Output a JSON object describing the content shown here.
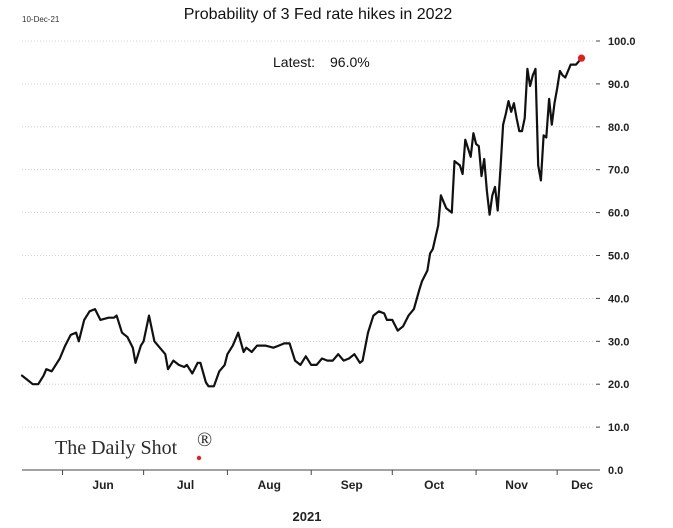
{
  "header": {
    "date_stamp": "10-Dec-21",
    "title": "Probability of 3 Fed rate hikes in 2022"
  },
  "annotation": {
    "latest_label": "Latest:",
    "latest_value": "96.0%"
  },
  "brand": {
    "name": "The Daily Shot",
    "mark": "®",
    "dot_color": "#e02020"
  },
  "colors": {
    "line": "#111111",
    "latest_marker": "#e02020",
    "grid": "#c4c4c4"
  },
  "chart_data": {
    "type": "line",
    "title": "Probability of 3 Fed rate hikes in 2022",
    "xlabel": "2021",
    "ylabel": "",
    "ylim": [
      0,
      100
    ],
    "y_ticks": [
      "0.0",
      "10.0",
      "20.0",
      "30.0",
      "40.0",
      "50.0",
      "60.0",
      "70.0",
      "80.0",
      "90.0",
      "100.0"
    ],
    "y_axis_side": "right",
    "grid": true,
    "x_ticks": [
      {
        "label": "Jun",
        "date": "2021-06-01"
      },
      {
        "label": "Jul",
        "date": "2021-07-01"
      },
      {
        "label": "Aug",
        "date": "2021-08-01"
      },
      {
        "label": "Sep",
        "date": "2021-09-01"
      },
      {
        "label": "Oct",
        "date": "2021-10-01"
      },
      {
        "label": "Nov",
        "date": "2021-11-01"
      },
      {
        "label": "Dec",
        "date": "2021-12-01"
      }
    ],
    "x_range": [
      "2021-05-17",
      "2021-12-15"
    ],
    "latest": {
      "date": "2021-12-10",
      "value": 96.0
    },
    "series": [
      {
        "points": [
          [
            "2021-05-17",
            22.0
          ],
          [
            "2021-05-19",
            21.0
          ],
          [
            "2021-05-21",
            20.0
          ],
          [
            "2021-05-23",
            20.0
          ],
          [
            "2021-05-25",
            22.0
          ],
          [
            "2021-05-26",
            23.5
          ],
          [
            "2021-05-28",
            23.0
          ],
          [
            "2021-05-31",
            26.0
          ],
          [
            "2021-06-02",
            29.0
          ],
          [
            "2021-06-04",
            31.5
          ],
          [
            "2021-06-06",
            32.0
          ],
          [
            "2021-06-07",
            30.0
          ],
          [
            "2021-06-09",
            35.0
          ],
          [
            "2021-06-11",
            37.0
          ],
          [
            "2021-06-13",
            37.5
          ],
          [
            "2021-06-15",
            35.0
          ],
          [
            "2021-06-18",
            35.5
          ],
          [
            "2021-06-20",
            35.5
          ],
          [
            "2021-06-21",
            36.0
          ],
          [
            "2021-06-23",
            32.0
          ],
          [
            "2021-06-25",
            31.0
          ],
          [
            "2021-06-27",
            28.5
          ],
          [
            "2021-06-28",
            25.0
          ],
          [
            "2021-06-30",
            29.0
          ],
          [
            "2021-07-01",
            30.0
          ],
          [
            "2021-07-03",
            36.0
          ],
          [
            "2021-07-05",
            30.0
          ],
          [
            "2021-07-07",
            28.5
          ],
          [
            "2021-07-09",
            27.0
          ],
          [
            "2021-07-10",
            23.5
          ],
          [
            "2021-07-12",
            25.5
          ],
          [
            "2021-07-14",
            24.5
          ],
          [
            "2021-07-16",
            24.0
          ],
          [
            "2021-07-17",
            24.5
          ],
          [
            "2021-07-19",
            22.5
          ],
          [
            "2021-07-21",
            25.0
          ],
          [
            "2021-07-22",
            25.0
          ],
          [
            "2021-07-24",
            20.5
          ],
          [
            "2021-07-25",
            19.5
          ],
          [
            "2021-07-27",
            19.5
          ],
          [
            "2021-07-29",
            23.0
          ],
          [
            "2021-07-31",
            24.5
          ],
          [
            "2021-08-01",
            27.0
          ],
          [
            "2021-08-03",
            29.0
          ],
          [
            "2021-08-05",
            32.0
          ],
          [
            "2021-08-07",
            27.5
          ],
          [
            "2021-08-08",
            28.5
          ],
          [
            "2021-08-10",
            27.5
          ],
          [
            "2021-08-12",
            29.0
          ],
          [
            "2021-08-15",
            29.0
          ],
          [
            "2021-08-18",
            28.5
          ],
          [
            "2021-08-20",
            29.0
          ],
          [
            "2021-08-22",
            29.5
          ],
          [
            "2021-08-24",
            29.5
          ],
          [
            "2021-08-26",
            25.5
          ],
          [
            "2021-08-28",
            24.5
          ],
          [
            "2021-08-30",
            26.5
          ],
          [
            "2021-09-01",
            24.5
          ],
          [
            "2021-09-03",
            24.5
          ],
          [
            "2021-09-05",
            26.0
          ],
          [
            "2021-09-07",
            25.5
          ],
          [
            "2021-09-09",
            25.5
          ],
          [
            "2021-09-11",
            27.0
          ],
          [
            "2021-09-13",
            25.5
          ],
          [
            "2021-09-15",
            26.0
          ],
          [
            "2021-09-17",
            27.0
          ],
          [
            "2021-09-19",
            25.0
          ],
          [
            "2021-09-20",
            25.5
          ],
          [
            "2021-09-22",
            32.0
          ],
          [
            "2021-09-24",
            36.0
          ],
          [
            "2021-09-26",
            37.0
          ],
          [
            "2021-09-28",
            36.5
          ],
          [
            "2021-09-29",
            35.0
          ],
          [
            "2021-10-01",
            35.0
          ],
          [
            "2021-10-03",
            32.5
          ],
          [
            "2021-10-05",
            33.5
          ],
          [
            "2021-10-07",
            36.0
          ],
          [
            "2021-10-09",
            37.5
          ],
          [
            "2021-10-11",
            42.0
          ],
          [
            "2021-10-12",
            44.0
          ],
          [
            "2021-10-14",
            46.5
          ],
          [
            "2021-10-15",
            50.5
          ],
          [
            "2021-10-16",
            51.5
          ],
          [
            "2021-10-18",
            57.0
          ],
          [
            "2021-10-19",
            64.0
          ],
          [
            "2021-10-20",
            62.5
          ],
          [
            "2021-10-21",
            61.0
          ],
          [
            "2021-10-23",
            60.0
          ],
          [
            "2021-10-24",
            72.0
          ],
          [
            "2021-10-26",
            71.0
          ],
          [
            "2021-10-27",
            69.0
          ],
          [
            "2021-10-28",
            77.0
          ],
          [
            "2021-10-30",
            73.0
          ],
          [
            "2021-10-31",
            78.5
          ],
          [
            "2021-11-01",
            76.0
          ],
          [
            "2021-11-02",
            75.5
          ],
          [
            "2021-11-03",
            68.5
          ],
          [
            "2021-11-04",
            72.5
          ],
          [
            "2021-11-05",
            65.0
          ],
          [
            "2021-11-06",
            59.5
          ],
          [
            "2021-11-07",
            64.0
          ],
          [
            "2021-11-08",
            66.0
          ],
          [
            "2021-11-09",
            60.5
          ],
          [
            "2021-11-10",
            70.0
          ],
          [
            "2021-11-11",
            80.5
          ],
          [
            "2021-11-12",
            83.0
          ],
          [
            "2021-11-13",
            86.0
          ],
          [
            "2021-11-14",
            83.5
          ],
          [
            "2021-11-15",
            85.5
          ],
          [
            "2021-11-16",
            82.0
          ],
          [
            "2021-11-17",
            79.0
          ],
          [
            "2021-11-18",
            79.0
          ],
          [
            "2021-11-19",
            82.0
          ],
          [
            "2021-11-20",
            93.5
          ],
          [
            "2021-11-21",
            89.5
          ],
          [
            "2021-11-22",
            92.0
          ],
          [
            "2021-11-23",
            93.5
          ],
          [
            "2021-11-24",
            71.0
          ],
          [
            "2021-11-25",
            67.5
          ],
          [
            "2021-11-26",
            78.0
          ],
          [
            "2021-11-27",
            77.5
          ],
          [
            "2021-11-28",
            86.5
          ],
          [
            "2021-11-29",
            80.5
          ],
          [
            "2021-11-30",
            85.5
          ],
          [
            "2021-12-01",
            89.0
          ],
          [
            "2021-12-02",
            93.0
          ],
          [
            "2021-12-03",
            92.0
          ],
          [
            "2021-12-04",
            91.5
          ],
          [
            "2021-12-06",
            94.5
          ],
          [
            "2021-12-08",
            94.5
          ],
          [
            "2021-12-10",
            96.0
          ]
        ]
      }
    ]
  }
}
